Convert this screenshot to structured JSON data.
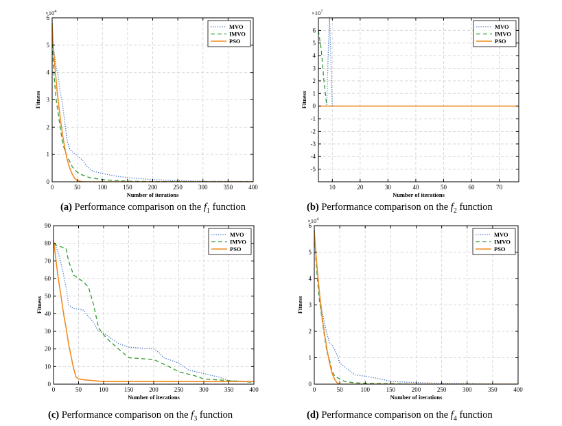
{
  "legend_labels": [
    "MVO",
    "IMVO",
    "PSO"
  ],
  "colors": {
    "MVO": "#4a78c4",
    "IMVO": "#2e9a2e",
    "PSO": "#f28a20",
    "grid": "#d6d6d6"
  },
  "captions": [
    {
      "letter": "(a)",
      "text": "Performance comparison on the",
      "func": "f",
      "sub": "1",
      "suffix": "function"
    },
    {
      "letter": "(b)",
      "text": "Performance comparison on the",
      "func": "f",
      "sub": "2",
      "suffix": "function"
    },
    {
      "letter": "(c)",
      "text": "Performance comparison on the",
      "func": "f",
      "sub": "3",
      "suffix": "function"
    },
    {
      "letter": "(d)",
      "text": "Performance comparison on the",
      "func": "f",
      "sub": "4",
      "suffix": "function"
    }
  ],
  "chart_data": [
    {
      "type": "line",
      "panel": "a",
      "xlabel": "Number of iterations",
      "ylabel": "Fitness",
      "exponent": "×10^4",
      "xlim": [
        0,
        400
      ],
      "ylim": [
        0,
        6
      ],
      "xticks": [
        0,
        50,
        100,
        150,
        200,
        250,
        300,
        350,
        400
      ],
      "yticks": [
        0,
        1,
        2,
        3,
        4,
        5,
        6
      ],
      "legend_position": "top-right",
      "series": [
        {
          "name": "MVO",
          "style": "dotted",
          "x": [
            0,
            2,
            5,
            8,
            12,
            15,
            20,
            25,
            30,
            35,
            40,
            50,
            60,
            70,
            80,
            100,
            130,
            150,
            200,
            250,
            300,
            400
          ],
          "y": [
            5.9,
            5.0,
            4.6,
            4.2,
            3.9,
            3.4,
            2.9,
            2.2,
            1.5,
            1.2,
            1.1,
            0.95,
            0.8,
            0.55,
            0.4,
            0.3,
            0.2,
            0.15,
            0.08,
            0.04,
            0.02,
            0.01
          ]
        },
        {
          "name": "IMVO",
          "style": "dashed",
          "x": [
            0,
            2,
            5,
            8,
            12,
            16,
            20,
            25,
            30,
            35,
            40,
            50,
            60,
            75,
            100,
            130,
            150,
            200,
            400
          ],
          "y": [
            5.8,
            4.4,
            3.6,
            3.0,
            2.5,
            2.0,
            1.5,
            1.15,
            0.9,
            0.75,
            0.55,
            0.35,
            0.25,
            0.15,
            0.08,
            0.04,
            0.02,
            0.01,
            0.0
          ]
        },
        {
          "name": "PSO",
          "style": "solid",
          "x": [
            0,
            2,
            5,
            10,
            15,
            20,
            25,
            30,
            35,
            40,
            45,
            50,
            60,
            400
          ],
          "y": [
            5.75,
            5.0,
            4.3,
            3.3,
            2.5,
            1.8,
            1.25,
            0.8,
            0.5,
            0.28,
            0.12,
            0.05,
            0.0,
            0.0
          ]
        }
      ]
    },
    {
      "type": "line",
      "panel": "b",
      "xlabel": "Number of iterations",
      "ylabel": "Fitness",
      "exponent": "×10^7",
      "xlim": [
        5,
        77
      ],
      "ylim": [
        -6,
        7
      ],
      "xticks": [
        10,
        20,
        30,
        40,
        50,
        60,
        70
      ],
      "yticks": [
        -5,
        -4,
        -3,
        -2,
        -1,
        0,
        1,
        2,
        3,
        4,
        5,
        6
      ],
      "legend_position": "top-right",
      "series": [
        {
          "name": "MVO",
          "style": "dotted",
          "x": [
            8,
            8.5,
            9,
            10,
            12,
            20,
            77
          ],
          "y": [
            0.1,
            4.0,
            7.0,
            0.02,
            0.0,
            0.0,
            0.0
          ]
        },
        {
          "name": "IMVO",
          "style": "dashed",
          "x": [
            5,
            6,
            7,
            8,
            10,
            77
          ],
          "y": [
            6.0,
            4.5,
            2.0,
            0.0,
            0.0,
            0.0
          ]
        },
        {
          "name": "PSO",
          "style": "solid",
          "x": [
            5,
            77
          ],
          "y": [
            0.0,
            0.0
          ]
        }
      ]
    },
    {
      "type": "line",
      "panel": "c",
      "xlabel": "Number of iterations",
      "ylabel": "Fitness",
      "exponent": "",
      "xlim": [
        0,
        400
      ],
      "ylim": [
        0,
        90
      ],
      "xticks": [
        0,
        50,
        100,
        150,
        200,
        250,
        300,
        350,
        400
      ],
      "yticks": [
        0,
        10,
        20,
        30,
        40,
        50,
        60,
        70,
        80,
        90
      ],
      "legend_position": "top-right",
      "series": [
        {
          "name": "MVO",
          "style": "dotted",
          "x": [
            0,
            5,
            12,
            18,
            25,
            30,
            40,
            60,
            65,
            80,
            90,
            100,
            120,
            130,
            150,
            200,
            210,
            220,
            250,
            260,
            270,
            300,
            330,
            350,
            400
          ],
          "y": [
            80,
            78,
            72,
            65,
            55,
            45,
            43,
            42,
            40,
            35,
            30,
            29,
            25,
            23,
            21,
            20,
            18,
            15,
            12,
            10,
            8,
            6,
            4,
            2,
            1.5
          ]
        },
        {
          "name": "IMVO",
          "style": "dashed",
          "x": [
            0,
            5,
            25,
            30,
            40,
            60,
            70,
            80,
            90,
            100,
            110,
            130,
            150,
            200,
            230,
            250,
            280,
            300,
            350,
            400
          ],
          "y": [
            80,
            79,
            77,
            70,
            62,
            58,
            55,
            45,
            32,
            28,
            25,
            20,
            15,
            14,
            10,
            7,
            5,
            3,
            2,
            1
          ]
        },
        {
          "name": "PSO",
          "style": "solid",
          "x": [
            0,
            5,
            10,
            15,
            20,
            25,
            30,
            35,
            40,
            45,
            50,
            60,
            80,
            100,
            400
          ],
          "y": [
            82,
            70,
            59,
            50,
            40,
            32,
            23,
            16,
            9,
            4,
            3,
            2.5,
            2,
            1.5,
            1.5
          ]
        }
      ]
    },
    {
      "type": "line",
      "panel": "d",
      "xlabel": "Number of iterations",
      "ylabel": "Fitness",
      "exponent": "×10^4",
      "xlim": [
        0,
        400
      ],
      "ylim": [
        0,
        6
      ],
      "xticks": [
        0,
        50,
        100,
        150,
        200,
        250,
        300,
        350,
        400
      ],
      "yticks": [
        0,
        1,
        2,
        3,
        4,
        5,
        6
      ],
      "legend_position": "top-right",
      "series": [
        {
          "name": "MVO",
          "style": "dotted",
          "x": [
            0,
            3,
            6,
            10,
            15,
            20,
            25,
            30,
            35,
            40,
            45,
            50,
            60,
            70,
            80,
            100,
            130,
            150,
            200,
            250,
            300,
            400
          ],
          "y": [
            5.9,
            5.0,
            4.2,
            3.4,
            2.8,
            2.3,
            1.9,
            1.55,
            1.5,
            1.3,
            1.1,
            0.8,
            0.65,
            0.5,
            0.35,
            0.3,
            0.2,
            0.1,
            0.06,
            0.03,
            0.02,
            0.0
          ]
        },
        {
          "name": "IMVO",
          "style": "dashed",
          "x": [
            0,
            3,
            6,
            10,
            15,
            20,
            25,
            30,
            35,
            40,
            50,
            60,
            80,
            100,
            150,
            200,
            400
          ],
          "y": [
            5.85,
            4.8,
            4.0,
            3.2,
            2.5,
            1.8,
            1.2,
            0.9,
            0.5,
            0.3,
            0.2,
            0.1,
            0.05,
            0.03,
            0.02,
            0.0,
            0.0
          ]
        },
        {
          "name": "PSO",
          "style": "solid",
          "x": [
            0,
            3,
            6,
            10,
            15,
            20,
            25,
            30,
            35,
            40,
            45,
            50,
            400
          ],
          "y": [
            5.75,
            5.0,
            4.3,
            3.5,
            2.6,
            1.9,
            1.3,
            0.8,
            0.4,
            0.18,
            0.05,
            0.0,
            0.0
          ]
        }
      ]
    }
  ]
}
